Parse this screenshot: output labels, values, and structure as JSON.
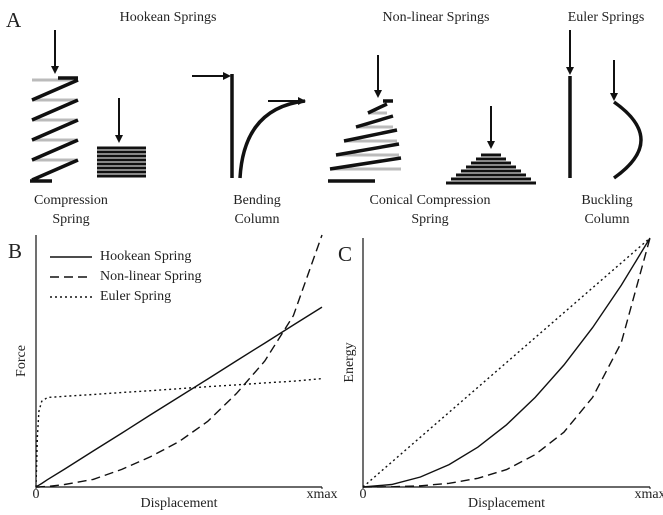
{
  "panel_a": {
    "label": "A",
    "headings": [
      "Hookean Springs",
      "Non-linear Springs",
      "Euler Springs"
    ],
    "captions": [
      [
        "Compression",
        "Spring"
      ],
      [
        "Bending",
        "Column"
      ],
      [
        "Conical Compression",
        "Spring"
      ],
      [
        "Buckling",
        "Column"
      ]
    ]
  },
  "chart_data": [
    {
      "type": "line",
      "panel_label": "B",
      "y_label": "Force",
      "x_label": "Displacement",
      "xlim": [
        0,
        1
      ],
      "ylim": [
        0,
        1
      ],
      "xticks": [
        0,
        {
          "value": 1,
          "label": "xmax"
        }
      ],
      "legend": "upper left",
      "x": [
        0,
        0.005,
        0.01,
        0.02,
        0.04,
        0.1,
        0.2,
        0.3,
        0.4,
        0.5,
        0.6,
        0.7,
        0.8,
        0.9,
        1
      ],
      "series": [
        {
          "name": "Hookean Spring",
          "color": "#111",
          "style": "solid",
          "values": [
            0,
            0.004,
            0.007,
            0.014,
            0.029,
            0.071,
            0.143,
            0.214,
            0.286,
            0.357,
            0.428,
            0.5,
            0.571,
            0.643,
            0.714
          ]
        },
        {
          "name": "Non-linear Spring",
          "color": "#111",
          "style": "dashed",
          "values": [
            0,
            0,
            0,
            0.001,
            0.002,
            0.01,
            0.03,
            0.07,
            0.12,
            0.18,
            0.26,
            0.37,
            0.5,
            0.68,
            1
          ]
        },
        {
          "name": "Euler Spring",
          "color": "#111",
          "style": "dotted",
          "values": [
            0,
            0.2,
            0.3,
            0.34,
            0.355,
            0.36,
            0.367,
            0.375,
            0.382,
            0.39,
            0.398,
            0.405,
            0.413,
            0.42,
            0.43
          ]
        }
      ]
    },
    {
      "type": "line",
      "panel_label": "C",
      "y_label": "Energy",
      "x_label": "Displacement",
      "xlim": [
        0,
        1
      ],
      "ylim": [
        0,
        1
      ],
      "xticks": [
        0,
        {
          "value": 1,
          "label": "xmax"
        }
      ],
      "x": [
        0,
        0.1,
        0.2,
        0.3,
        0.4,
        0.5,
        0.6,
        0.7,
        0.8,
        0.9,
        1
      ],
      "series": [
        {
          "color": "#111",
          "style": "solid",
          "values": [
            0,
            0.01,
            0.04,
            0.09,
            0.16,
            0.25,
            0.36,
            0.49,
            0.64,
            0.81,
            1
          ]
        },
        {
          "color": "#111",
          "style": "dashed",
          "values": [
            0,
            0.001,
            0.005,
            0.015,
            0.035,
            0.07,
            0.13,
            0.22,
            0.36,
            0.58,
            1
          ]
        },
        {
          "color": "#111",
          "style": "dotted",
          "values": [
            0,
            0.1,
            0.2,
            0.3,
            0.4,
            0.5,
            0.6,
            0.7,
            0.8,
            0.9,
            1
          ]
        }
      ]
    }
  ]
}
